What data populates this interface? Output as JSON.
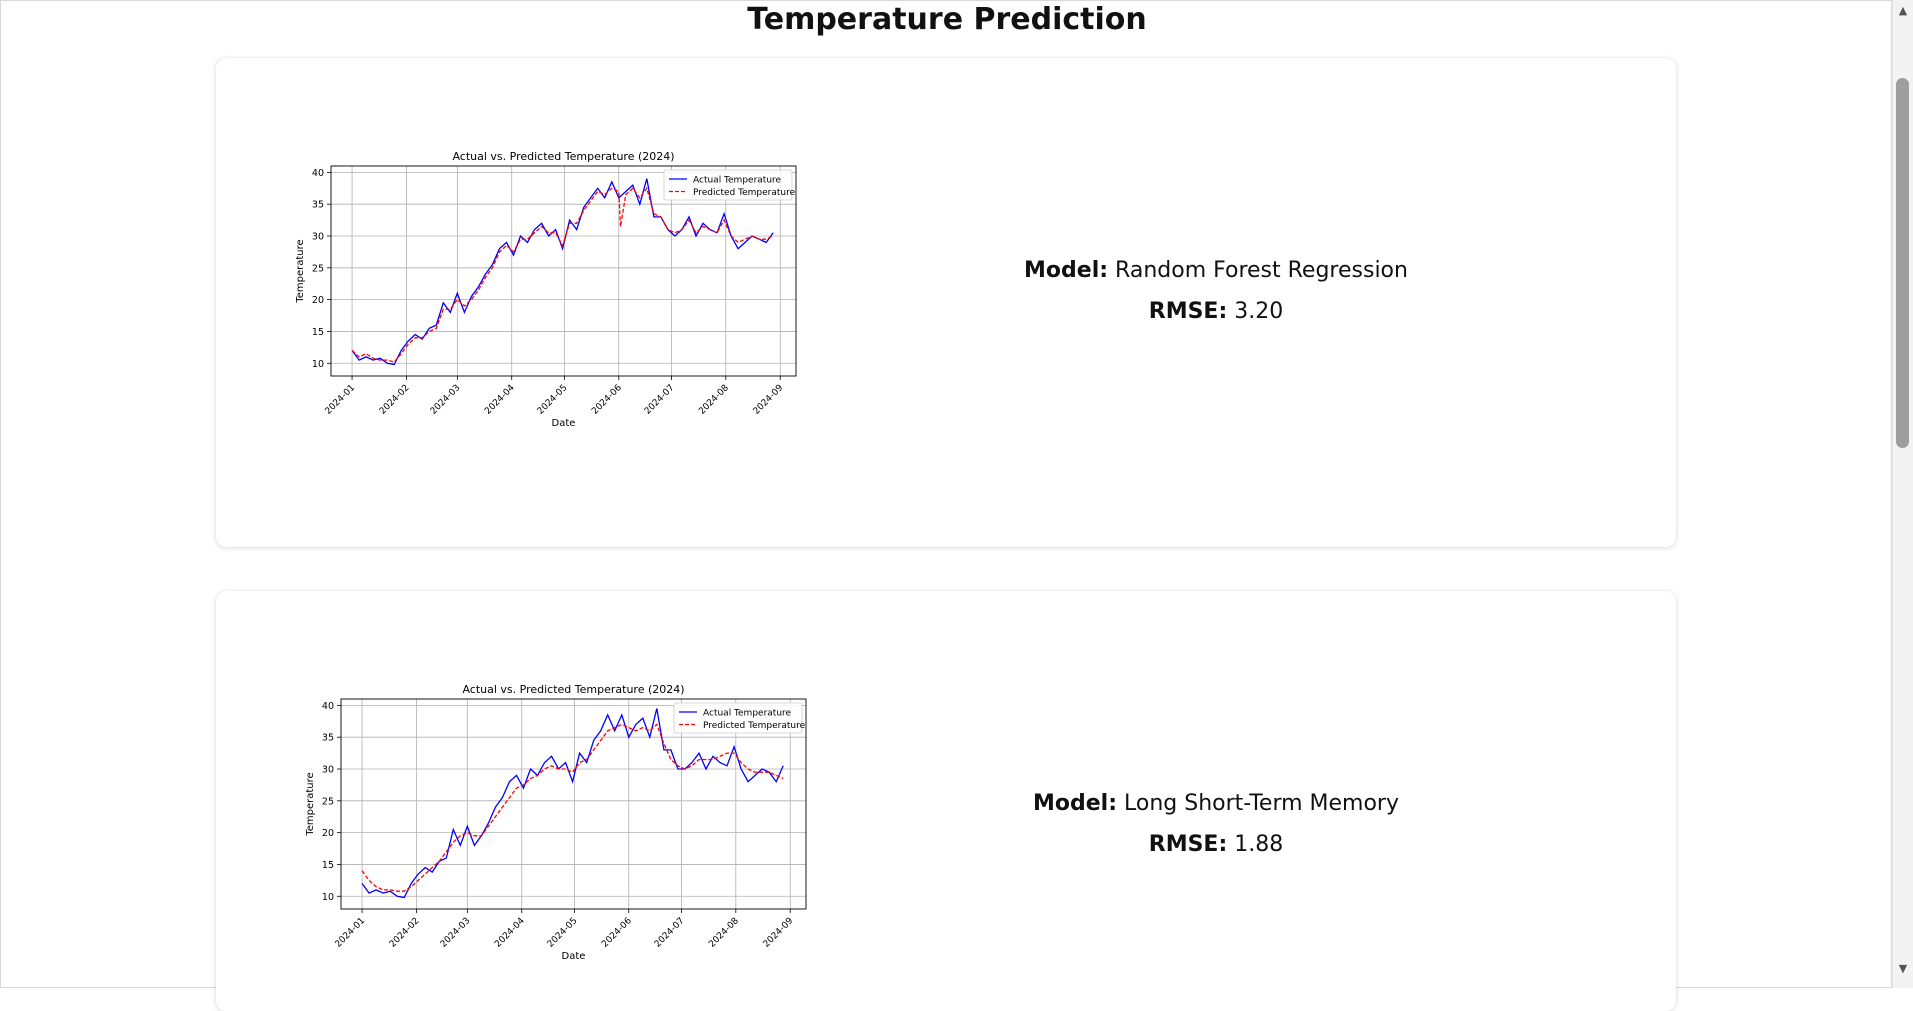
{
  "page": {
    "title": "Temperature Prediction"
  },
  "cards": [
    {
      "model_label": "Model:",
      "model_name": "Random Forest Regression",
      "rmse_label": "RMSE:",
      "rmse_value": "3.20"
    },
    {
      "model_label": "Model:",
      "model_name": "Long Short-Term Memory",
      "rmse_label": "RMSE:",
      "rmse_value": "1.88"
    }
  ],
  "scrollbar": {
    "up_icon": "triangle-up",
    "down_icon": "triangle-down"
  },
  "chart_data": [
    {
      "type": "line",
      "title": "Actual vs. Predicted Temperature (2024)",
      "xlabel": "Date",
      "ylabel": "Temperature",
      "ylim": [
        8,
        41
      ],
      "xlim": [
        "2023-12-20",
        "2024-09-10"
      ],
      "yticks": [
        10,
        15,
        20,
        25,
        30,
        35,
        40
      ],
      "xticks": [
        "2024-01",
        "2024-02",
        "2024-03",
        "2024-04",
        "2024-05",
        "2024-06",
        "2024-07",
        "2024-08",
        "2024-09"
      ],
      "grid": true,
      "legend": "top-right",
      "series": [
        {
          "name": "Actual Temperature",
          "color": "#0000ff",
          "style": "solid",
          "x": [
            "2024-01-01",
            "2024-01-05",
            "2024-01-09",
            "2024-01-13",
            "2024-01-17",
            "2024-01-21",
            "2024-01-25",
            "2024-01-29",
            "2024-02-02",
            "2024-02-06",
            "2024-02-10",
            "2024-02-14",
            "2024-02-18",
            "2024-02-22",
            "2024-02-26",
            "2024-03-01",
            "2024-03-05",
            "2024-03-09",
            "2024-03-13",
            "2024-03-17",
            "2024-03-21",
            "2024-03-25",
            "2024-03-29",
            "2024-04-02",
            "2024-04-06",
            "2024-04-10",
            "2024-04-14",
            "2024-04-18",
            "2024-04-22",
            "2024-04-26",
            "2024-04-30",
            "2024-05-04",
            "2024-05-08",
            "2024-05-12",
            "2024-05-16",
            "2024-05-20",
            "2024-05-24",
            "2024-05-28",
            "2024-06-01",
            "2024-06-05",
            "2024-06-09",
            "2024-06-13",
            "2024-06-17",
            "2024-06-21",
            "2024-06-25",
            "2024-06-29",
            "2024-07-03",
            "2024-07-07",
            "2024-07-11",
            "2024-07-15",
            "2024-07-19",
            "2024-07-23",
            "2024-07-27",
            "2024-07-31",
            "2024-08-04",
            "2024-08-08",
            "2024-08-12",
            "2024-08-16",
            "2024-08-20",
            "2024-08-24",
            "2024-08-28"
          ],
          "y": [
            12,
            10.5,
            11,
            10.5,
            10.8,
            10,
            9.8,
            12,
            13.5,
            14.5,
            13.8,
            15.5,
            16,
            19.5,
            18,
            21,
            18,
            20.5,
            22,
            24,
            25.5,
            28,
            29,
            27,
            30,
            29,
            31,
            32,
            30,
            31,
            28,
            32.5,
            31,
            34.5,
            36,
            37.5,
            36,
            38.5,
            36,
            37,
            38,
            35,
            39,
            33,
            33,
            31,
            30,
            31,
            33,
            30,
            32,
            31,
            30.5,
            33.5,
            30,
            28,
            29,
            30,
            29.5,
            29,
            30.5
          ]
        },
        {
          "name": "Predicted Temperature",
          "color": "#ff0000",
          "style": "dashed",
          "x": [
            "2024-01-01",
            "2024-01-05",
            "2024-01-09",
            "2024-01-13",
            "2024-01-17",
            "2024-01-21",
            "2024-01-25",
            "2024-01-29",
            "2024-02-02",
            "2024-02-06",
            "2024-02-10",
            "2024-02-14",
            "2024-02-18",
            "2024-02-22",
            "2024-02-26",
            "2024-03-01",
            "2024-03-05",
            "2024-03-09",
            "2024-03-13",
            "2024-03-17",
            "2024-03-21",
            "2024-03-25",
            "2024-03-29",
            "2024-04-02",
            "2024-04-06",
            "2024-04-10",
            "2024-04-14",
            "2024-04-18",
            "2024-04-22",
            "2024-04-26",
            "2024-04-30",
            "2024-05-04",
            "2024-05-08",
            "2024-05-12",
            "2024-05-16",
            "2024-05-20",
            "2024-05-24",
            "2024-05-28",
            "2024-06-01",
            "2024-06-02",
            "2024-06-05",
            "2024-06-09",
            "2024-06-13",
            "2024-06-17",
            "2024-06-21",
            "2024-06-25",
            "2024-06-29",
            "2024-07-03",
            "2024-07-07",
            "2024-07-11",
            "2024-07-15",
            "2024-07-19",
            "2024-07-23",
            "2024-07-27",
            "2024-07-31",
            "2024-08-04",
            "2024-08-08",
            "2024-08-12",
            "2024-08-16",
            "2024-08-20",
            "2024-08-24",
            "2024-08-28"
          ],
          "y": [
            12,
            11,
            11.5,
            10.8,
            10.5,
            10.5,
            10.2,
            11.5,
            13,
            14,
            14,
            15,
            15.5,
            18.5,
            18.5,
            20,
            19,
            20,
            21.5,
            23.5,
            25,
            27.5,
            28.5,
            27.5,
            29.5,
            29.5,
            30.5,
            31.5,
            30.5,
            30.5,
            28.5,
            32,
            32,
            34,
            35.5,
            37,
            36.5,
            37.5,
            37,
            31.5,
            36.5,
            37.5,
            36,
            37.5,
            33.5,
            33,
            31,
            30.5,
            31,
            32.5,
            30.5,
            31.5,
            31,
            30.5,
            32.5,
            30,
            29,
            29.5,
            30,
            29.5,
            29.5,
            30
          ]
        }
      ]
    },
    {
      "type": "line",
      "title": "Actual vs. Predicted Temperature (2024)",
      "xlabel": "Date",
      "ylabel": "Temperature",
      "ylim": [
        8,
        41
      ],
      "xlim": [
        "2023-12-20",
        "2024-09-10"
      ],
      "yticks": [
        10,
        15,
        20,
        25,
        30,
        35,
        40
      ],
      "xticks": [
        "2024-01",
        "2024-02",
        "2024-03",
        "2024-04",
        "2024-05",
        "2024-06",
        "2024-07",
        "2024-08",
        "2024-09"
      ],
      "grid": true,
      "legend": "top-right",
      "series": [
        {
          "name": "Actual Temperature",
          "color": "#0000ff",
          "style": "solid",
          "x": [
            "2024-01-01",
            "2024-01-05",
            "2024-01-09",
            "2024-01-13",
            "2024-01-17",
            "2024-01-21",
            "2024-01-25",
            "2024-01-29",
            "2024-02-02",
            "2024-02-06",
            "2024-02-10",
            "2024-02-14",
            "2024-02-18",
            "2024-02-22",
            "2024-02-26",
            "2024-03-01",
            "2024-03-05",
            "2024-03-09",
            "2024-03-13",
            "2024-03-17",
            "2024-03-21",
            "2024-03-25",
            "2024-03-29",
            "2024-04-02",
            "2024-04-06",
            "2024-04-10",
            "2024-04-14",
            "2024-04-18",
            "2024-04-22",
            "2024-04-26",
            "2024-04-30",
            "2024-05-04",
            "2024-05-08",
            "2024-05-12",
            "2024-05-16",
            "2024-05-20",
            "2024-05-24",
            "2024-05-28",
            "2024-06-01",
            "2024-06-05",
            "2024-06-09",
            "2024-06-13",
            "2024-06-17",
            "2024-06-21",
            "2024-06-25",
            "2024-06-29",
            "2024-07-03",
            "2024-07-07",
            "2024-07-11",
            "2024-07-15",
            "2024-07-19",
            "2024-07-23",
            "2024-07-27",
            "2024-07-31",
            "2024-08-04",
            "2024-08-08",
            "2024-08-12",
            "2024-08-16",
            "2024-08-20",
            "2024-08-24",
            "2024-08-28"
          ],
          "y": [
            12,
            10.5,
            11,
            10.5,
            10.8,
            10,
            9.8,
            12,
            13.5,
            14.5,
            13.8,
            15.5,
            16,
            20.5,
            18,
            21,
            18,
            19.5,
            21.5,
            24,
            25.5,
            28,
            29,
            27,
            30,
            29,
            31,
            32,
            30,
            31,
            28,
            32.5,
            31,
            34.5,
            36,
            38.5,
            36,
            38.5,
            35,
            37,
            38,
            35,
            39.5,
            33,
            33,
            30,
            30,
            31,
            32.5,
            30,
            32,
            31,
            30.5,
            33.5,
            30,
            28,
            29,
            30,
            29.5,
            28,
            30.5
          ]
        },
        {
          "name": "Predicted Temperature",
          "color": "#ff0000",
          "style": "dashed",
          "x": [
            "2024-01-01",
            "2024-01-05",
            "2024-01-09",
            "2024-01-13",
            "2024-01-17",
            "2024-01-21",
            "2024-01-25",
            "2024-01-29",
            "2024-02-02",
            "2024-02-06",
            "2024-02-10",
            "2024-02-14",
            "2024-02-18",
            "2024-02-22",
            "2024-02-26",
            "2024-03-01",
            "2024-03-05",
            "2024-03-09",
            "2024-03-13",
            "2024-03-17",
            "2024-03-21",
            "2024-03-25",
            "2024-03-29",
            "2024-04-02",
            "2024-04-06",
            "2024-04-10",
            "2024-04-14",
            "2024-04-18",
            "2024-04-22",
            "2024-04-26",
            "2024-04-30",
            "2024-05-04",
            "2024-05-08",
            "2024-05-12",
            "2024-05-16",
            "2024-05-20",
            "2024-05-24",
            "2024-05-28",
            "2024-06-01",
            "2024-06-05",
            "2024-06-09",
            "2024-06-13",
            "2024-06-17",
            "2024-06-21",
            "2024-06-25",
            "2024-06-29",
            "2024-07-03",
            "2024-07-07",
            "2024-07-11",
            "2024-07-15",
            "2024-07-19",
            "2024-07-23",
            "2024-07-27",
            "2024-07-31",
            "2024-08-04",
            "2024-08-08",
            "2024-08-12",
            "2024-08-16",
            "2024-08-20",
            "2024-08-24",
            "2024-08-28"
          ],
          "y": [
            14,
            12.5,
            11.5,
            11,
            11,
            10.8,
            10.8,
            11.5,
            12.5,
            13.5,
            14.5,
            15.5,
            17,
            18.5,
            19.5,
            20,
            19.5,
            19.5,
            21,
            22.5,
            24,
            25.5,
            27,
            27.5,
            28.5,
            29,
            30,
            30.5,
            30,
            30,
            29.5,
            31,
            31.5,
            33,
            34.5,
            36,
            36.5,
            37,
            36.5,
            36,
            36.5,
            36,
            37,
            34,
            31.5,
            30.5,
            30,
            30.5,
            31.5,
            31.5,
            31.5,
            32,
            32.5,
            32.5,
            31,
            30,
            29.5,
            29.5,
            29.5,
            29,
            28.5
          ]
        }
      ]
    }
  ]
}
